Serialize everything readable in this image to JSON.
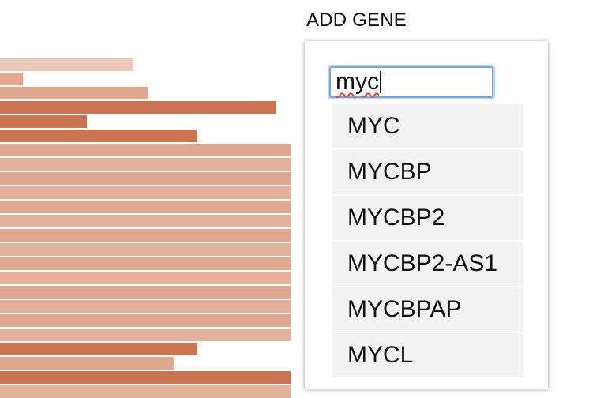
{
  "panel": {
    "title": "ADD GENE",
    "search_value": "myc"
  },
  "suggestions": [
    "MYC",
    "MYCBP",
    "MYCBP2",
    "MYCBP2-AS1",
    "MYCBPAP",
    "MYCL"
  ],
  "background_bars": {
    "fill_fractions": [
      0.46,
      0.08,
      0.51,
      0.95,
      0.3,
      0.68,
      1,
      1,
      1,
      1,
      1,
      1,
      1,
      1,
      1,
      1,
      1,
      1,
      1,
      1,
      0.68,
      0.6,
      1,
      1
    ],
    "colors": [
      "#ecc9b8",
      "#e3a88f",
      "#e0a790",
      "#cc7452",
      "#cc7452",
      "#cc7452",
      "#e0a790",
      "#e3b09a",
      "#e0a790",
      "#e3b09a",
      "#e0a790",
      "#e3b09a",
      "#e0a790",
      "#e3b09a",
      "#e0a790",
      "#e3b09a",
      "#e0a790",
      "#e3b09a",
      "#e0a790",
      "#e3b09a",
      "#cc7452",
      "#e0a790",
      "#cc7452",
      "#e3b09a"
    ]
  }
}
